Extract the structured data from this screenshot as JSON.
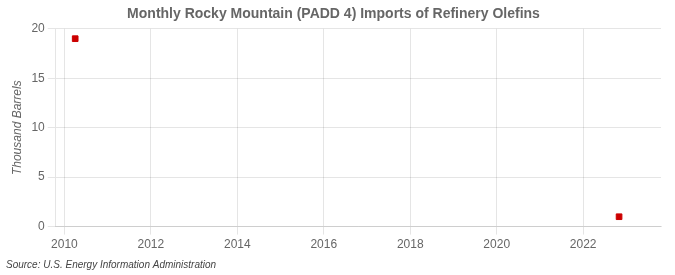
{
  "chart_data": {
    "type": "scatter",
    "title": "Monthly Rocky Mountain (PADD 4) Imports of Refinery Olefins",
    "ylabel": "Thousand Barrels",
    "annotation": "Source: U.S. Energy Information Administration",
    "x": [
      2010.25,
      2022.83
    ],
    "values": [
      19,
      1
    ],
    "color": "#cc0000",
    "marker": "square",
    "xlim": [
      2009.8,
      2023.8
    ],
    "ylim": [
      0,
      20
    ],
    "xticks": [
      2010,
      2012,
      2014,
      2016,
      2018,
      2020,
      2022
    ],
    "yticks": [
      0,
      5,
      10,
      15,
      20
    ],
    "grid": true
  }
}
